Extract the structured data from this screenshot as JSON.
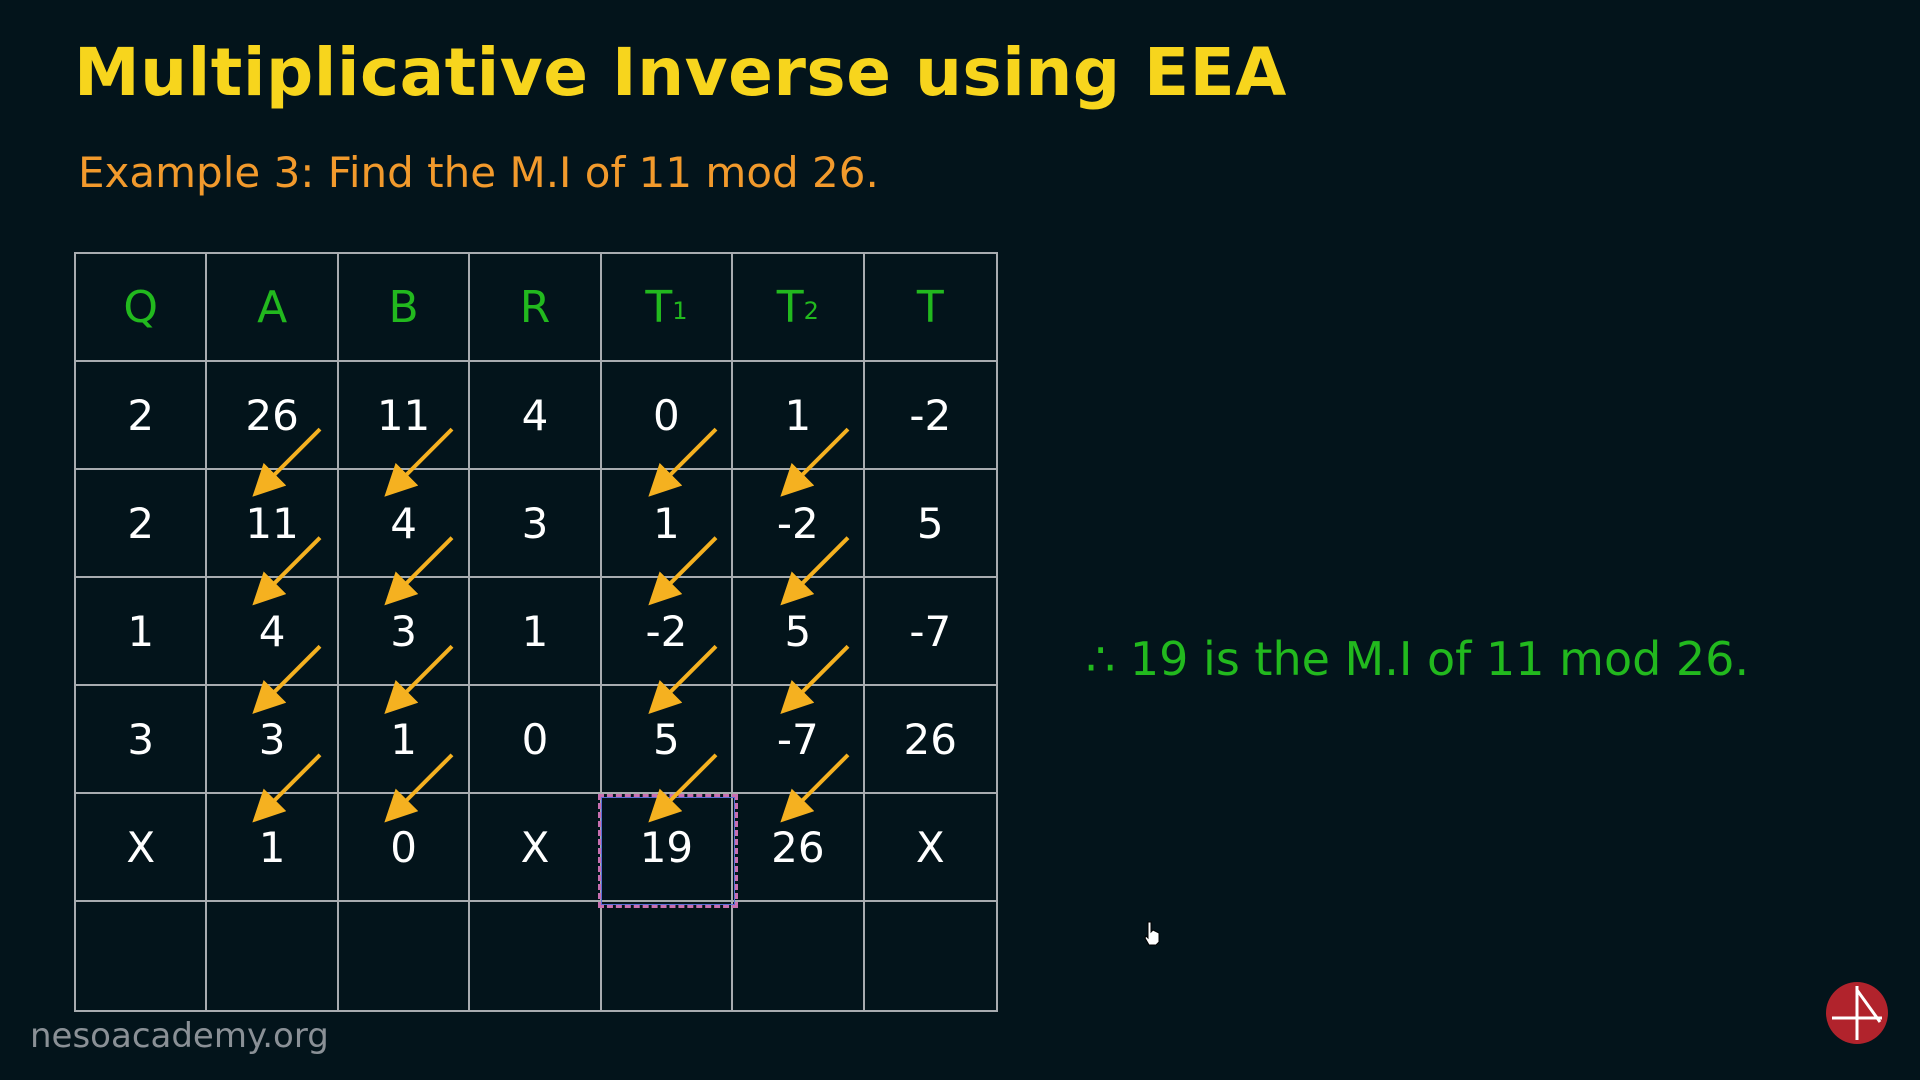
{
  "header": {
    "title": "Multiplicative Inverse using EEA",
    "subtitle": "Example 3: Find the M.I of 11 mod 26."
  },
  "table": {
    "headers": [
      {
        "main": "Q",
        "sub": ""
      },
      {
        "main": "A",
        "sub": ""
      },
      {
        "main": "B",
        "sub": ""
      },
      {
        "main": "R",
        "sub": ""
      },
      {
        "main": "T",
        "sub": "1"
      },
      {
        "main": "T",
        "sub": "2"
      },
      {
        "main": "T",
        "sub": ""
      }
    ],
    "rows": [
      [
        "2",
        "26",
        "11",
        "4",
        "0",
        "1",
        "-2"
      ],
      [
        "2",
        "11",
        "4",
        "3",
        "1",
        "-2",
        "5"
      ],
      [
        "1",
        "4",
        "3",
        "1",
        "-2",
        "5",
        "-7"
      ],
      [
        "3",
        "3",
        "1",
        "0",
        "5",
        "-7",
        "26"
      ],
      [
        "X",
        "1",
        "0",
        "X",
        "19",
        "26",
        "X"
      ],
      [
        "",
        "",
        "",
        "",
        "",
        "",
        ""
      ]
    ],
    "highlighted_value": "19"
  },
  "conclusion": "∴ 19 is the M.I of 11 mod 26.",
  "watermark": "nesoacademy.org",
  "colors": {
    "background": "#03141b",
    "title": "#f7d51d",
    "subtitle": "#f29a2c",
    "header_text": "#22b91e",
    "cell_text": "#ffffff",
    "arrow": "#f5b120",
    "grid_line": "#a8acb0",
    "logo": "#b1232c"
  },
  "icons": [
    "arrow-diagonal-icon",
    "neso-logo-icon",
    "hand-cursor-icon"
  ]
}
